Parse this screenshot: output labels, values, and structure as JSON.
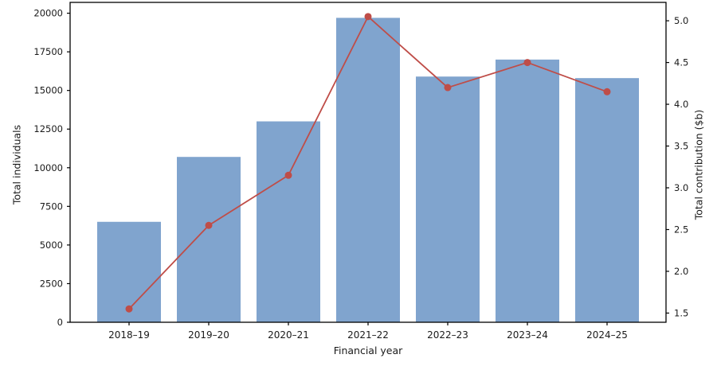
{
  "figure": {
    "background": "#ffffff",
    "bar_color": "#80a4ce",
    "line_color": "#bf4d48",
    "axis_color": "#000000",
    "text_color": "#1a1a1a"
  },
  "chart_data": {
    "type": "bar",
    "subtype": "bar-with-line-dual-axis",
    "title": "",
    "xlabel": "Financial year",
    "ylabel_left": "Total individuals",
    "ylabel_right": "Total contribution ($b)",
    "categories": [
      "2018–19",
      "2019–20",
      "2020–21",
      "2021–22",
      "2022–23",
      "2023–24",
      "2024–25"
    ],
    "series": [
      {
        "name": "Total individuals",
        "type": "bar",
        "axis": "left",
        "color": "#80a4ce",
        "values": [
          6500,
          10700,
          13000,
          19700,
          15900,
          17000,
          15800
        ]
      },
      {
        "name": "Total contribution ($b)",
        "type": "line",
        "axis": "right",
        "color": "#bf4d48",
        "marker": "circle",
        "values": [
          1.55,
          2.55,
          3.15,
          5.05,
          4.2,
          4.5,
          4.15
        ]
      }
    ],
    "left_axis": {
      "ticks": [
        0,
        2500,
        5000,
        7500,
        10000,
        12500,
        15000,
        17500,
        20000
      ],
      "ylim": [
        0,
        20700
      ]
    },
    "right_axis": {
      "ticks": [
        1.5,
        2.0,
        2.5,
        3.0,
        3.5,
        4.0,
        4.5,
        5.0
      ],
      "ylim": [
        1.39,
        5.22
      ]
    },
    "grid": false,
    "legend": "none"
  }
}
